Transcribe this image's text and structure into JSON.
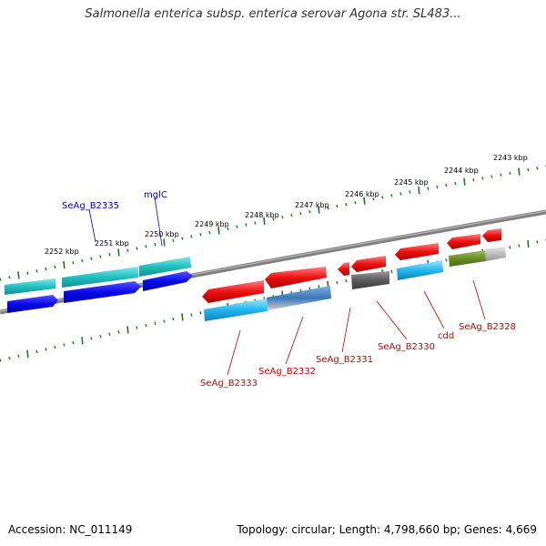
{
  "title": "Salmonella enterica subsp. enterica serovar Agona str. SL483...",
  "accession_text": "Accession: NC_011149",
  "summary_text": "Topology: circular; Length: 4,798,660 bp; Genes: 4,669",
  "tick_labels": [
    "2252 kbp",
    "2251 kbp",
    "2250 kbp",
    "2249 kbp",
    "2248 kbp",
    "2247 kbp",
    "2246 kbp",
    "2245 kbp",
    "2244 kbp",
    "2243 kbp"
  ],
  "gene_labels": {
    "forward": [
      "SeAg_B2335",
      "mglC"
    ],
    "reverse": [
      "SeAg_B2333",
      "SeAg_B2332",
      "SeAg_B2331",
      "SeAg_B2330",
      "cdd",
      "SeAg_B2328"
    ]
  },
  "colors": {
    "forward_label": "#0000cc",
    "reverse_label": "#cc0000",
    "tick_green": "#1a7a1a",
    "backbone": "#808080"
  }
}
